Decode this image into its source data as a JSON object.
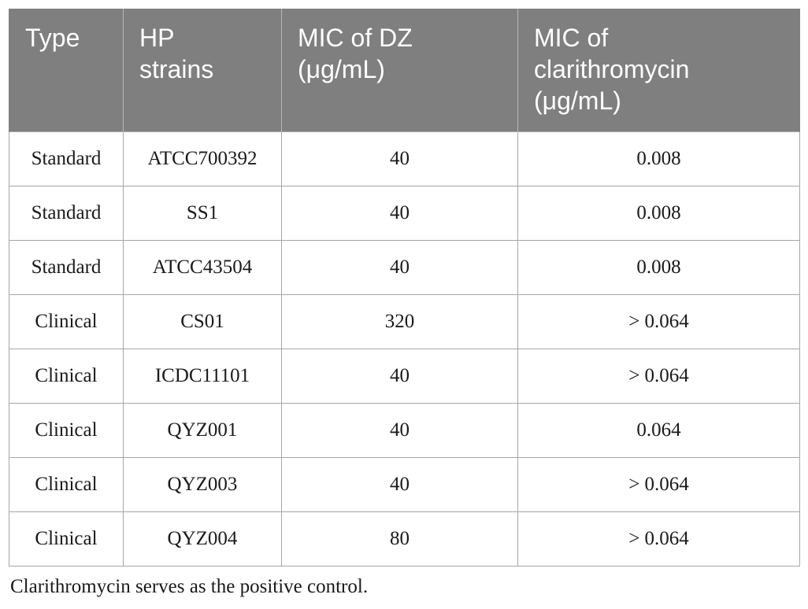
{
  "table": {
    "headers": [
      [
        "Type"
      ],
      [
        "HP",
        "strains"
      ],
      [
        "MIC of DZ",
        "(μg/mL)"
      ],
      [
        "MIC of",
        "clarithromycin",
        "(μg/mL)"
      ]
    ],
    "rows": [
      [
        "Standard",
        "ATCC700392",
        "40",
        "0.008"
      ],
      [
        "Standard",
        "SS1",
        "40",
        "0.008"
      ],
      [
        "Standard",
        "ATCC43504",
        "40",
        "0.008"
      ],
      [
        "Clinical",
        "CS01",
        "320",
        "> 0.064"
      ],
      [
        "Clinical",
        "ICDC11101",
        "40",
        "> 0.064"
      ],
      [
        "Clinical",
        "QYZ001",
        "40",
        "0.064"
      ],
      [
        "Clinical",
        "QYZ003",
        "40",
        "> 0.064"
      ],
      [
        "Clinical",
        "QYZ004",
        "80",
        "> 0.064"
      ]
    ]
  },
  "footnote": "Clarithromycin serves as the positive control.",
  "colors": {
    "header_bg": "#7f7f7f",
    "header_text": "#ffffff",
    "border": "#a6a6a6"
  }
}
